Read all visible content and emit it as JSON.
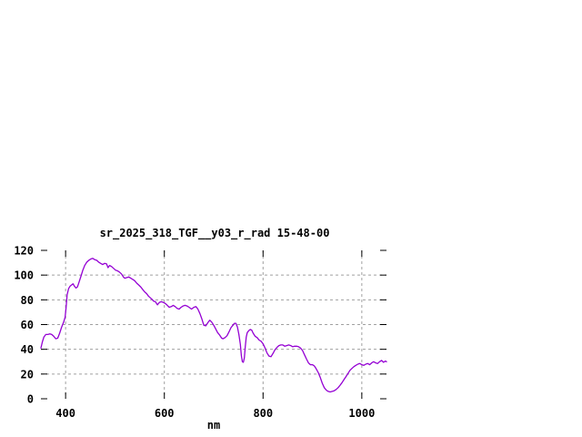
{
  "colors": {
    "line": "#9400d3",
    "grid": "#a0a0a0",
    "axis": "#000000",
    "background": "#ffffff"
  },
  "chart_data": {
    "type": "line",
    "title": "sr_2025_318_TGF__y03_r_rad 15-48-00",
    "xlabel": "nm",
    "ylabel": "",
    "xlim": [
      350,
      1050
    ],
    "ylim": [
      0,
      120
    ],
    "xticks": [
      400,
      600,
      800,
      1000
    ],
    "yticks": [
      0,
      20,
      40,
      60,
      80,
      100,
      120
    ],
    "grid": true,
    "legend_position": "none",
    "series": [
      {
        "name": "sr_2025_318_TGF__y03_r_rad",
        "color": "#9400d3",
        "x": [
          350,
          353,
          356,
          360,
          364,
          368,
          372,
          376,
          380,
          384,
          388,
          392,
          396,
          399,
          401,
          403,
          406,
          409,
          412,
          415,
          418,
          421,
          424,
          427,
          431,
          435,
          439,
          443,
          447,
          451,
          455,
          459,
          463,
          467,
          471,
          475,
          479,
          483,
          486,
          489,
          493,
          497,
          501,
          505,
          509,
          513,
          517,
          520,
          524,
          528,
          532,
          536,
          540,
          544,
          548,
          552,
          556,
          560,
          564,
          568,
          572,
          575,
          578,
          582,
          586,
          590,
          594,
          598,
          602,
          606,
          610,
          614,
          618,
          622,
          626,
          630,
          634,
          638,
          642,
          646,
          650,
          655,
          660,
          664,
          668,
          672,
          676,
          680,
          684,
          688,
          692,
          696,
          700,
          704,
          708,
          712,
          716,
          719,
          723,
          727,
          731,
          735,
          739,
          742,
          745,
          748,
          751,
          754,
          756,
          758,
          760,
          762,
          764,
          766,
          768,
          771,
          774,
          777,
          780,
          784,
          788,
          792,
          796,
          800,
          804,
          808,
          812,
          816,
          820,
          824,
          828,
          832,
          836,
          840,
          844,
          848,
          852,
          856,
          860,
          864,
          868,
          872,
          876,
          880,
          884,
          888,
          892,
          896,
          900,
          904,
          908,
          912,
          916,
          920,
          924,
          928,
          932,
          936,
          940,
          944,
          948,
          952,
          956,
          960,
          964,
          968,
          972,
          976,
          980,
          984,
          988,
          992,
          996,
          1000,
          1004,
          1008,
          1012,
          1016,
          1020,
          1024,
          1028,
          1032,
          1036,
          1040,
          1044,
          1048,
          1050
        ],
        "y": [
          41,
          46,
          50,
          52,
          52,
          52.5,
          52,
          50.5,
          48.5,
          49,
          53,
          58,
          62,
          66,
          74,
          84,
          89,
          91,
          92,
          93,
          91,
          89.5,
          90.5,
          94,
          99,
          104,
          108,
          110.5,
          112,
          113,
          113.5,
          112.5,
          112,
          110.5,
          109.5,
          108.5,
          109.5,
          109,
          106,
          107.8,
          107,
          105.5,
          104,
          103.5,
          102.5,
          101,
          98.5,
          97.5,
          98,
          98.5,
          97.5,
          96.5,
          95.5,
          93.5,
          92,
          90.5,
          88.5,
          86.5,
          85,
          83,
          81.5,
          80.5,
          79,
          78.5,
          76,
          78,
          78.5,
          78,
          77,
          75.5,
          74,
          74.5,
          75.5,
          74.5,
          73,
          72.5,
          74,
          75,
          75.5,
          75,
          74,
          72.5,
          74,
          74.5,
          72.5,
          69,
          64.5,
          59.5,
          59,
          61.5,
          63.5,
          62,
          59.5,
          56.5,
          53.5,
          51.5,
          49,
          48.5,
          49.5,
          51,
          54,
          57.5,
          59.5,
          61,
          61,
          58,
          52,
          44,
          35,
          30,
          29.5,
          33,
          42,
          50,
          53.5,
          55,
          56,
          55.5,
          53,
          50.5,
          49.5,
          47.5,
          46.5,
          44.5,
          41,
          37,
          34.5,
          34,
          36.5,
          39.5,
          41.5,
          43,
          43.5,
          43.5,
          42.5,
          43,
          43.5,
          43,
          42,
          42.5,
          42.5,
          42,
          41,
          39,
          35.5,
          32,
          29,
          27.5,
          27.5,
          26.5,
          24,
          21,
          17,
          12.5,
          9,
          7,
          6,
          5.5,
          6,
          6.5,
          7.5,
          9,
          11,
          13,
          15.5,
          18,
          20.5,
          23,
          24.5,
          26,
          27,
          28,
          28.5,
          27.5,
          27,
          28,
          28.5,
          27.5,
          29,
          30,
          29,
          28.5,
          30,
          31,
          29.5,
          30.5,
          30
        ]
      }
    ]
  }
}
